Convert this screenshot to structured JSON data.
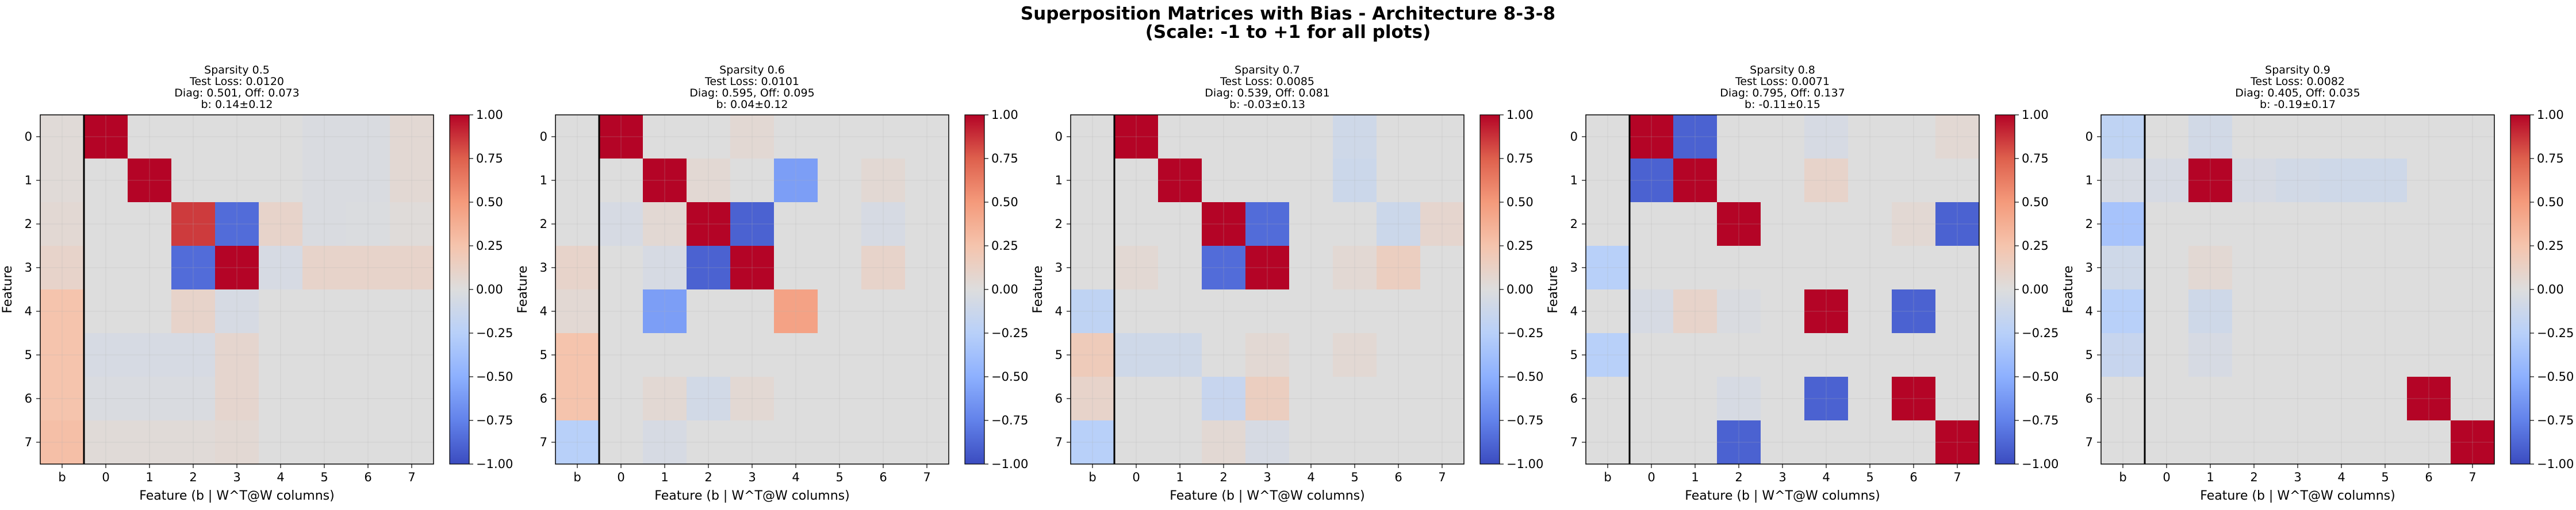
{
  "figure": {
    "title_line1": "Superposition Matrices with Bias - Architecture 8-3-8",
    "title_line2": "(Scale: -1 to +1 for all plots)"
  },
  "chart_data": [
    {
      "type": "heatmap",
      "title": "Sparsity 0.5\nTest Loss: 0.0120\nDiag: 0.501, Off: 0.073\nb: 0.14±0.12",
      "xlabel": "Feature (b | W^T@W columns)",
      "ylabel": "Feature",
      "x_categories": [
        "b",
        "0",
        "1",
        "2",
        "3",
        "4",
        "5",
        "6",
        "7"
      ],
      "y_categories": [
        "0",
        "1",
        "2",
        "3",
        "4",
        "5",
        "6",
        "7"
      ],
      "colorbar": {
        "min": -1.0,
        "max": 1.0,
        "ticks": [
          "−1.00",
          "−0.75",
          "−0.50",
          "−0.25",
          "0.00",
          "0.25",
          "0.50",
          "0.75",
          "1.00"
        ]
      },
      "grid": true,
      "values": [
        [
          0.03,
          1.0,
          0.0,
          0.0,
          0.0,
          0.0,
          -0.03,
          -0.03,
          0.05
        ],
        [
          0.03,
          0.0,
          1.0,
          0.0,
          0.0,
          0.0,
          -0.03,
          -0.03,
          0.05
        ],
        [
          0.05,
          0.0,
          0.0,
          0.85,
          -0.85,
          0.1,
          -0.03,
          -0.02,
          0.02
        ],
        [
          0.1,
          0.0,
          0.0,
          -0.85,
          1.0,
          -0.05,
          0.1,
          0.1,
          0.1
        ],
        [
          0.25,
          0.0,
          0.0,
          0.1,
          -0.05,
          0.0,
          0.0,
          0.0,
          0.0
        ],
        [
          0.25,
          -0.05,
          -0.05,
          -0.05,
          0.08,
          0.0,
          0.0,
          0.0,
          0.0
        ],
        [
          0.25,
          -0.03,
          -0.03,
          -0.03,
          0.08,
          0.0,
          0.0,
          0.0,
          0.0
        ],
        [
          0.28,
          0.03,
          0.03,
          0.03,
          0.05,
          0.0,
          0.0,
          0.0,
          0.0
        ]
      ]
    },
    {
      "type": "heatmap",
      "title": "Sparsity 0.6\nTest Loss: 0.0101\nDiag: 0.595, Off: 0.095\nb: 0.04±0.12",
      "xlabel": "Feature (b | W^T@W columns)",
      "ylabel": "Feature",
      "x_categories": [
        "b",
        "0",
        "1",
        "2",
        "3",
        "4",
        "5",
        "6",
        "7"
      ],
      "y_categories": [
        "0",
        "1",
        "2",
        "3",
        "4",
        "5",
        "6",
        "7"
      ],
      "colorbar": {
        "min": -1.0,
        "max": 1.0,
        "ticks": [
          "−1.00",
          "−0.75",
          "−0.50",
          "−0.25",
          "0.00",
          "0.25",
          "0.50",
          "0.75",
          "1.00"
        ]
      },
      "grid": true,
      "values": [
        [
          0.0,
          1.0,
          0.0,
          0.0,
          0.05,
          0.0,
          0.0,
          0.0,
          0.0
        ],
        [
          0.0,
          0.0,
          1.0,
          0.05,
          0.0,
          -0.6,
          0.0,
          0.05,
          0.0
        ],
        [
          0.0,
          -0.05,
          0.05,
          1.0,
          -0.9,
          0.0,
          0.0,
          -0.05,
          0.0
        ],
        [
          0.1,
          0.0,
          -0.05,
          -0.9,
          1.0,
          0.0,
          0.0,
          0.1,
          0.0
        ],
        [
          0.05,
          0.0,
          -0.6,
          0.0,
          0.0,
          0.45,
          0.0,
          0.0,
          0.0
        ],
        [
          0.25,
          0.0,
          0.0,
          0.0,
          0.0,
          0.0,
          0.0,
          0.0,
          0.0
        ],
        [
          0.25,
          0.0,
          0.05,
          -0.08,
          0.05,
          0.0,
          0.0,
          0.0,
          0.0
        ],
        [
          -0.25,
          0.0,
          -0.05,
          0.0,
          0.0,
          0.0,
          0.0,
          0.0,
          0.0
        ]
      ]
    },
    {
      "type": "heatmap",
      "title": "Sparsity 0.7\nTest Loss: 0.0085\nDiag: 0.539, Off: 0.081\nb: -0.03±0.13",
      "xlabel": "Feature (b | W^T@W columns)",
      "ylabel": "Feature",
      "x_categories": [
        "b",
        "0",
        "1",
        "2",
        "3",
        "4",
        "5",
        "6",
        "7"
      ],
      "y_categories": [
        "0",
        "1",
        "2",
        "3",
        "4",
        "5",
        "6",
        "7"
      ],
      "colorbar": {
        "min": -1.0,
        "max": 1.0,
        "ticks": [
          "−1.00",
          "−0.75",
          "−0.50",
          "−0.25",
          "0.00",
          "0.25",
          "0.50",
          "0.75",
          "1.00"
        ]
      },
      "grid": true,
      "values": [
        [
          0.0,
          1.0,
          0.0,
          0.0,
          0.0,
          0.0,
          -0.1,
          0.0,
          0.0
        ],
        [
          0.0,
          0.0,
          1.0,
          0.0,
          0.0,
          0.0,
          -0.12,
          0.0,
          0.0
        ],
        [
          0.0,
          0.0,
          0.0,
          1.0,
          -0.85,
          0.0,
          0.0,
          -0.12,
          0.08
        ],
        [
          0.0,
          0.05,
          0.0,
          -0.85,
          1.0,
          0.0,
          0.05,
          0.15,
          0.0
        ],
        [
          -0.2,
          0.0,
          0.0,
          0.0,
          0.0,
          0.0,
          0.0,
          0.0,
          0.0
        ],
        [
          0.18,
          -0.1,
          -0.1,
          0.0,
          0.05,
          0.0,
          0.05,
          0.0,
          0.0
        ],
        [
          0.1,
          0.0,
          0.0,
          -0.15,
          0.15,
          0.0,
          0.0,
          0.0,
          0.0
        ],
        [
          -0.25,
          0.0,
          0.0,
          0.05,
          -0.05,
          0.0,
          0.0,
          0.0,
          0.0
        ]
      ]
    },
    {
      "type": "heatmap",
      "title": "Sparsity 0.8\nTest Loss: 0.0071\nDiag: 0.795, Off: 0.137\nb: -0.11±0.15",
      "xlabel": "Feature (b | W^T@W columns)",
      "ylabel": "Feature",
      "x_categories": [
        "b",
        "0",
        "1",
        "2",
        "3",
        "4",
        "5",
        "6",
        "7"
      ],
      "y_categories": [
        "0",
        "1",
        "2",
        "3",
        "4",
        "5",
        "6",
        "7"
      ],
      "colorbar": {
        "min": -1.0,
        "max": 1.0,
        "ticks": [
          "−1.00",
          "−0.75",
          "−0.50",
          "−0.25",
          "0.00",
          "0.25",
          "0.50",
          "0.75",
          "1.00"
        ]
      },
      "grid": true,
      "values": [
        [
          0.0,
          1.0,
          -0.9,
          0.0,
          0.0,
          -0.05,
          0.0,
          0.0,
          0.05
        ],
        [
          0.0,
          -0.9,
          1.0,
          0.0,
          0.0,
          0.1,
          0.0,
          0.0,
          0.0
        ],
        [
          0.0,
          0.0,
          0.0,
          1.0,
          0.0,
          0.0,
          0.0,
          0.05,
          -0.9
        ],
        [
          -0.25,
          0.0,
          0.0,
          0.0,
          0.0,
          0.0,
          0.0,
          0.0,
          0.0
        ],
        [
          0.0,
          -0.05,
          0.1,
          -0.03,
          0.0,
          1.0,
          0.0,
          -0.9,
          0.0
        ],
        [
          -0.25,
          0.0,
          0.0,
          0.0,
          0.0,
          0.0,
          0.0,
          0.0,
          0.0
        ],
        [
          0.0,
          0.0,
          0.0,
          -0.05,
          0.0,
          -0.9,
          0.0,
          1.0,
          0.0
        ],
        [
          0.0,
          0.0,
          0.0,
          -0.9,
          0.0,
          0.0,
          0.0,
          0.0,
          1.0
        ]
      ]
    },
    {
      "type": "heatmap",
      "title": "Sparsity 0.9\nTest Loss: 0.0082\nDiag: 0.405, Off: 0.035\nb: -0.19±0.17",
      "xlabel": "Feature (b | W^T@W columns)",
      "ylabel": "Feature",
      "x_categories": [
        "b",
        "0",
        "1",
        "2",
        "3",
        "4",
        "5",
        "6",
        "7"
      ],
      "y_categories": [
        "0",
        "1",
        "2",
        "3",
        "4",
        "5",
        "6",
        "7"
      ],
      "colorbar": {
        "min": -1.0,
        "max": 1.0,
        "ticks": [
          "−1.00",
          "−0.75",
          "−0.50",
          "−0.25",
          "0.00",
          "0.25",
          "0.50",
          "0.75",
          "1.00"
        ]
      },
      "grid": true,
      "values": [
        [
          -0.2,
          0.0,
          -0.08,
          0.0,
          0.0,
          0.0,
          0.0,
          0.0,
          0.0
        ],
        [
          -0.05,
          -0.05,
          1.0,
          -0.05,
          -0.08,
          -0.1,
          -0.1,
          0.0,
          0.0
        ],
        [
          -0.35,
          0.0,
          0.0,
          0.0,
          0.0,
          0.0,
          0.0,
          0.0,
          0.0
        ],
        [
          -0.1,
          0.0,
          0.05,
          0.0,
          0.0,
          0.0,
          0.0,
          0.0,
          0.0
        ],
        [
          -0.25,
          0.0,
          -0.1,
          0.0,
          0.0,
          0.0,
          0.0,
          0.0,
          0.0
        ],
        [
          -0.15,
          0.0,
          -0.05,
          0.0,
          0.0,
          0.0,
          0.0,
          0.0,
          0.0
        ],
        [
          0.0,
          0.0,
          0.0,
          0.0,
          0.0,
          0.0,
          0.0,
          1.0,
          0.0
        ],
        [
          0.0,
          0.0,
          0.0,
          0.0,
          0.0,
          0.0,
          0.0,
          0.0,
          1.0
        ]
      ]
    }
  ]
}
